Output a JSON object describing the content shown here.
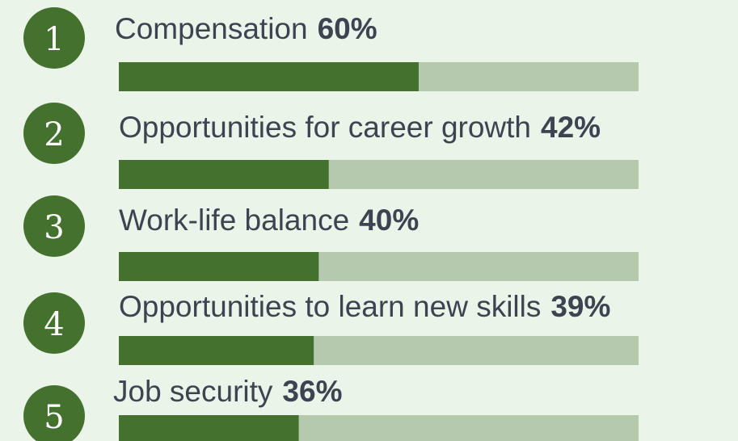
{
  "chart_data": {
    "type": "bar",
    "orientation": "horizontal",
    "ranks": [
      1,
      2,
      3,
      4,
      5
    ],
    "categories": [
      "Compensation",
      "Opportunities for career growth",
      "Work-life balance",
      "Opportunities to learn new skills",
      "Job security"
    ],
    "values": [
      60,
      42,
      40,
      39,
      36
    ],
    "value_labels": [
      "60%",
      "42%",
      "40%",
      "39%",
      "36%"
    ],
    "color": "#44712e",
    "track_color": "#b5c9ae",
    "badge_color": "#44712e",
    "xlim": [
      0,
      104
    ]
  }
}
